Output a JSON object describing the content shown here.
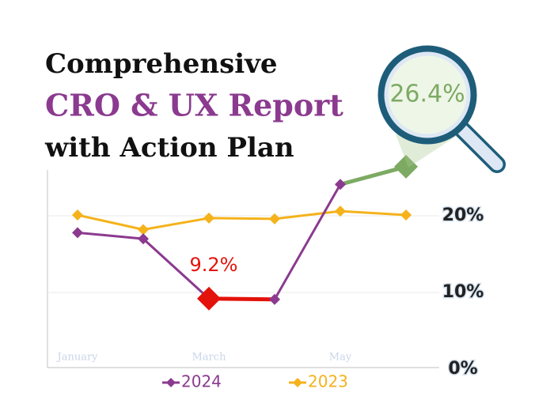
{
  "chart_data": {
    "type": "line",
    "title_lines": [
      "Comprehensive",
      "CRO & UX Report",
      "with Action Plan"
    ],
    "categories": [
      "January",
      null,
      "March",
      null,
      "May",
      null
    ],
    "series": [
      {
        "name": "2024",
        "color": "#8b3a8f",
        "values": [
          17.8,
          17.0,
          9.2,
          9.1,
          24.1,
          26.4
        ],
        "value_labels": [
          null,
          null,
          "9.2%",
          null,
          null,
          "26.4%"
        ],
        "highlights": [
          {
            "point": 2,
            "segment_to": 3,
            "color": "#e3120b"
          },
          {
            "point": 5,
            "segment_to": 4,
            "color": "#7daa63"
          }
        ]
      },
      {
        "name": "2023",
        "color": "#f5b21b",
        "values": [
          20.1,
          18.2,
          19.7,
          19.6,
          20.6,
          20.1
        ]
      }
    ],
    "ylim": [
      0,
      25.8
    ],
    "yticks": [
      {
        "value": 0,
        "label": "0%"
      },
      {
        "value": 10,
        "label": "10%"
      },
      {
        "value": 20,
        "label": "20%"
      }
    ],
    "grid": true
  }
}
